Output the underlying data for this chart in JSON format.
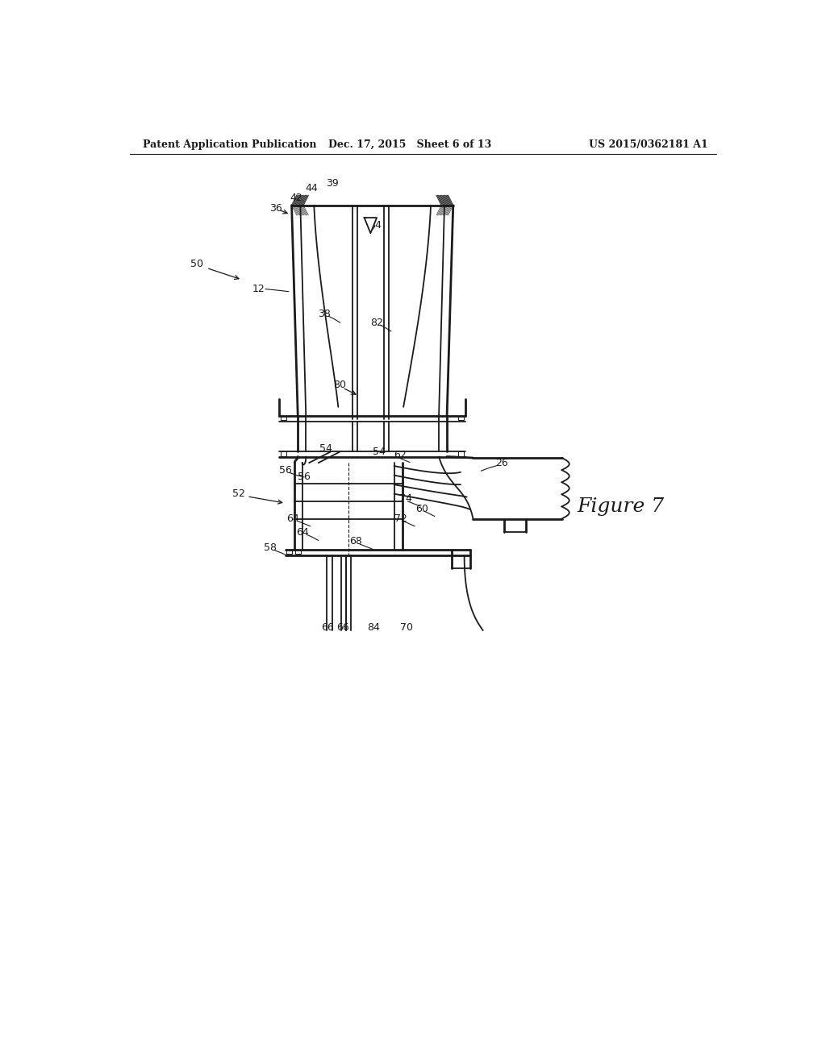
{
  "bg_color": "#ffffff",
  "line_color": "#1a1a1a",
  "header_left": "Patent Application Publication",
  "header_center": "Dec. 17, 2015   Sheet 6 of 13",
  "header_right": "US 2015/0362181 A1",
  "figure_label": "Figure 7",
  "label_fontsize": 9,
  "header_fontsize": 9
}
